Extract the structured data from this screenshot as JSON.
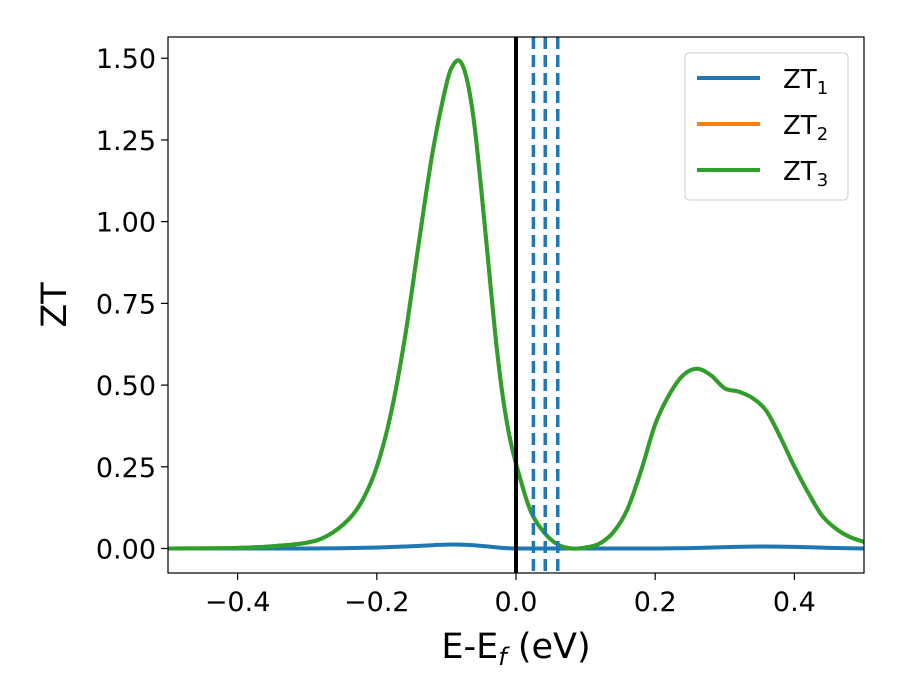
{
  "chart_data": {
    "type": "line",
    "title": "",
    "xlabel": "E-E",
    "xlabel_sub": "f",
    "xlabel_unit": " (eV)",
    "ylabel": "ZT",
    "xlim": [
      -0.5,
      0.5
    ],
    "ylim": [
      -0.075,
      1.565
    ],
    "xticks": [
      -0.4,
      -0.2,
      0.0,
      0.2,
      0.4
    ],
    "xtick_labels": [
      "−0.4",
      "−0.2",
      "0.0",
      "0.2",
      "0.4"
    ],
    "yticks": [
      0.0,
      0.25,
      0.5,
      0.75,
      1.0,
      1.25,
      1.5
    ],
    "ytick_labels": [
      "0.00",
      "0.25",
      "0.50",
      "0.75",
      "1.00",
      "1.25",
      "1.50"
    ],
    "grid": false,
    "legend_position": "top-right",
    "series": [
      {
        "name": "ZT",
        "sub": "1",
        "color": "#1f77b4",
        "x": [
          -0.5,
          -0.3,
          -0.2,
          -0.15,
          -0.12,
          -0.1,
          -0.08,
          -0.06,
          -0.04,
          -0.02,
          0.0,
          0.02,
          0.05,
          0.1,
          0.15,
          0.2,
          0.25,
          0.3,
          0.35,
          0.4,
          0.45,
          0.5
        ],
        "y": [
          0.0,
          0.0,
          0.003,
          0.007,
          0.01,
          0.012,
          0.012,
          0.01,
          0.006,
          0.002,
          0.0,
          0.0,
          0.0,
          0.0,
          0.0,
          0.0,
          0.001,
          0.004,
          0.006,
          0.005,
          0.002,
          0.0
        ]
      },
      {
        "name": "ZT",
        "sub": "2",
        "color": "#ff7f0e",
        "x": [
          -0.5,
          -0.4,
          -0.35,
          -0.3,
          -0.27,
          -0.24,
          -0.22,
          -0.2,
          -0.18,
          -0.16,
          -0.14,
          -0.12,
          -0.1,
          -0.09,
          -0.08,
          -0.07,
          -0.06,
          -0.05,
          -0.04,
          -0.03,
          -0.02,
          -0.01,
          0.0,
          0.02,
          0.04,
          0.06,
          0.08,
          0.1,
          0.12,
          0.14,
          0.16,
          0.18,
          0.2,
          0.22,
          0.24,
          0.26,
          0.28,
          0.3,
          0.32,
          0.34,
          0.36,
          0.38,
          0.4,
          0.42,
          0.44,
          0.46,
          0.48,
          0.5
        ],
        "y": [
          0.0,
          0.002,
          0.007,
          0.018,
          0.04,
          0.09,
          0.15,
          0.25,
          0.41,
          0.64,
          0.93,
          1.21,
          1.42,
          1.48,
          1.49,
          1.43,
          1.3,
          1.1,
          0.88,
          0.66,
          0.48,
          0.35,
          0.26,
          0.12,
          0.05,
          0.012,
          0.0,
          0.003,
          0.015,
          0.05,
          0.12,
          0.24,
          0.38,
          0.47,
          0.53,
          0.55,
          0.53,
          0.49,
          0.48,
          0.46,
          0.42,
          0.34,
          0.25,
          0.17,
          0.1,
          0.06,
          0.035,
          0.02
        ]
      },
      {
        "name": "ZT",
        "sub": "3",
        "color": "#2ca02c",
        "x": [
          -0.5,
          -0.4,
          -0.35,
          -0.3,
          -0.27,
          -0.24,
          -0.22,
          -0.2,
          -0.18,
          -0.16,
          -0.14,
          -0.12,
          -0.1,
          -0.09,
          -0.08,
          -0.07,
          -0.06,
          -0.05,
          -0.04,
          -0.03,
          -0.02,
          -0.01,
          0.0,
          0.02,
          0.04,
          0.06,
          0.08,
          0.1,
          0.12,
          0.14,
          0.16,
          0.18,
          0.2,
          0.22,
          0.24,
          0.26,
          0.28,
          0.3,
          0.32,
          0.34,
          0.36,
          0.38,
          0.4,
          0.42,
          0.44,
          0.46,
          0.48,
          0.5
        ],
        "y": [
          0.0,
          0.002,
          0.007,
          0.018,
          0.04,
          0.09,
          0.15,
          0.25,
          0.41,
          0.64,
          0.93,
          1.21,
          1.42,
          1.48,
          1.49,
          1.43,
          1.3,
          1.1,
          0.88,
          0.66,
          0.48,
          0.35,
          0.26,
          0.12,
          0.05,
          0.012,
          0.0,
          0.003,
          0.015,
          0.05,
          0.12,
          0.24,
          0.38,
          0.47,
          0.53,
          0.55,
          0.53,
          0.49,
          0.48,
          0.46,
          0.42,
          0.34,
          0.25,
          0.17,
          0.1,
          0.06,
          0.035,
          0.02
        ]
      }
    ],
    "vlines": [
      {
        "x": 0.0,
        "color": "#000000",
        "style": "solid"
      },
      {
        "x": 0.025,
        "color": "#1f77b4",
        "style": "dashed"
      },
      {
        "x": 0.042,
        "color": "#1f77b4",
        "style": "dashed"
      },
      {
        "x": 0.06,
        "color": "#1f77b4",
        "style": "dashed"
      }
    ]
  }
}
